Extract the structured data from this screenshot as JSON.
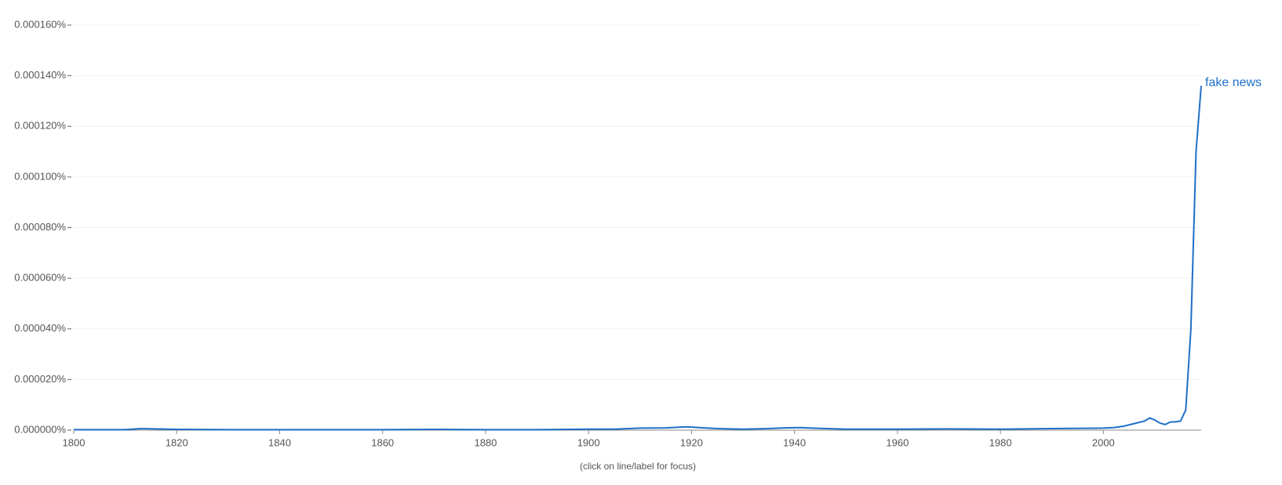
{
  "chart_data": {
    "type": "line",
    "annotation": "(click on line/label for focus)",
    "x": [
      1800,
      1810,
      1813,
      1820,
      1830,
      1840,
      1850,
      1860,
      1870,
      1880,
      1890,
      1900,
      1905,
      1910,
      1915,
      1919,
      1925,
      1930,
      1935,
      1938,
      1941,
      1945,
      1950,
      1960,
      1970,
      1980,
      1990,
      2000,
      2002,
      2004,
      2006,
      2008,
      2009,
      2010,
      2011,
      2012,
      2013,
      2014,
      2015,
      2016,
      2017,
      2018,
      2019
    ],
    "series": [
      {
        "name": "fake news",
        "color": "#1f6fc8",
        "values": [
          2e-07,
          2e-07,
          6e-07,
          3e-07,
          2e-07,
          2e-07,
          2e-07,
          2e-07,
          3e-07,
          2e-07,
          2e-07,
          4e-07,
          4e-07,
          8e-07,
          9e-07,
          1.3e-06,
          6e-07,
          4e-07,
          6e-07,
          9e-07,
          1e-06,
          7e-07,
          4e-07,
          4e-07,
          5e-07,
          4e-07,
          6e-07,
          8e-07,
          1e-06,
          1.6e-06,
          2.6e-06,
          3.6e-06,
          4.8e-06,
          4e-06,
          2.8e-06,
          2.2e-06,
          3.2e-06,
          3.3e-06,
          3.6e-06,
          8e-06,
          4e-05,
          0.00011,
          0.000136
        ]
      }
    ],
    "xlim": [
      1800,
      2019
    ],
    "xticks": [
      1800,
      1820,
      1840,
      1860,
      1880,
      1900,
      1920,
      1940,
      1960,
      1980,
      2000
    ],
    "ylim": [
      0,
      0.00016
    ],
    "yticks": [
      {
        "value": 0,
        "label": "0.000000%"
      },
      {
        "value": 2e-05,
        "label": "0.000020%"
      },
      {
        "value": 4e-05,
        "label": "0.000040%"
      },
      {
        "value": 6e-05,
        "label": "0.000060%"
      },
      {
        "value": 8e-05,
        "label": "0.000080%"
      },
      {
        "value": 0.0001,
        "label": "0.000100%"
      },
      {
        "value": 0.00012,
        "label": "0.000120%"
      },
      {
        "value": 0.00014,
        "label": "0.000140%"
      },
      {
        "value": 0.00016,
        "label": "0.000160%"
      }
    ],
    "grid": true
  }
}
